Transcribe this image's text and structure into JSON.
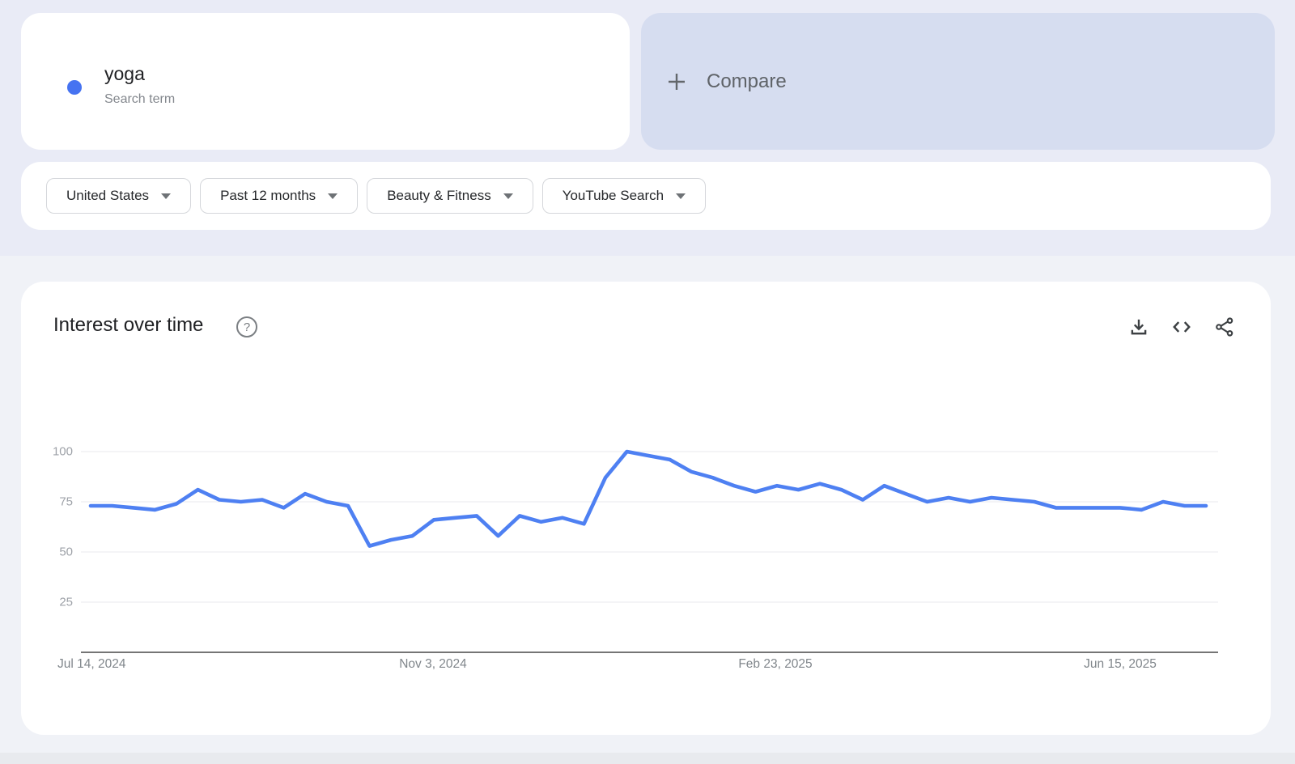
{
  "term_card": {
    "term": "yoga",
    "type_label": "Search term",
    "dot_color": "#4673f1"
  },
  "compare_card": {
    "label": "Compare",
    "plus_icon": "+"
  },
  "filters": [
    {
      "label": "United States"
    },
    {
      "label": "Past 12 months"
    },
    {
      "label": "Beauty & Fitness"
    },
    {
      "label": "YouTube Search"
    }
  ],
  "chart_header": {
    "title": "Interest over time",
    "help_icon": "?",
    "actions": [
      "download",
      "embed",
      "share"
    ]
  },
  "chart_data": {
    "type": "line",
    "title": "Interest over time",
    "xlabel": "",
    "ylabel": "",
    "ylim": [
      0,
      100
    ],
    "grid": "horizontal",
    "legend": "none",
    "ytick_labels": [
      "100",
      "75",
      "50",
      "25"
    ],
    "xtick_labels": [
      "Jul 14, 2024",
      "Nov 3, 2024",
      "Feb 23, 2025",
      "Jun 15, 2025"
    ],
    "x": [
      "2024-07-14",
      "2024-07-21",
      "2024-07-28",
      "2024-08-04",
      "2024-08-11",
      "2024-08-18",
      "2024-08-25",
      "2024-09-01",
      "2024-09-08",
      "2024-09-15",
      "2024-09-22",
      "2024-09-29",
      "2024-10-06",
      "2024-10-13",
      "2024-10-20",
      "2024-10-27",
      "2024-11-03",
      "2024-11-10",
      "2024-11-17",
      "2024-11-24",
      "2024-12-01",
      "2024-12-08",
      "2024-12-15",
      "2024-12-22",
      "2024-12-29",
      "2025-01-05",
      "2025-01-12",
      "2025-01-19",
      "2025-01-26",
      "2025-02-02",
      "2025-02-09",
      "2025-02-16",
      "2025-02-23",
      "2025-03-02",
      "2025-03-09",
      "2025-03-16",
      "2025-03-23",
      "2025-03-30",
      "2025-04-06",
      "2025-04-13",
      "2025-04-20",
      "2025-04-27",
      "2025-05-04",
      "2025-05-11",
      "2025-05-18",
      "2025-05-25",
      "2025-06-01",
      "2025-06-08",
      "2025-06-15",
      "2025-06-22",
      "2025-06-29",
      "2025-07-06",
      "2025-07-13"
    ],
    "series": [
      {
        "name": "yoga",
        "color": "#4e80f2",
        "values": [
          73,
          73,
          72,
          71,
          74,
          81,
          76,
          75,
          76,
          72,
          79,
          75,
          73,
          53,
          56,
          58,
          66,
          67,
          68,
          58,
          68,
          65,
          67,
          64,
          87,
          100,
          98,
          96,
          90,
          87,
          83,
          80,
          83,
          81,
          84,
          81,
          76,
          83,
          79,
          75,
          77,
          75,
          77,
          76,
          75,
          72,
          72,
          72,
          72,
          71,
          75,
          73,
          73
        ]
      }
    ]
  },
  "colors": {
    "hero_background": "#e9ebf6",
    "body_background": "#f0f2f7",
    "card_background": "#ffffff",
    "compare_background": "#d6ddf0",
    "line": "#4e80f2",
    "gridline": "#e8e9ec",
    "axis_baseline": "#757575",
    "ytick_text": "#9ea2a8",
    "xtick_text": "#80868b",
    "title_text": "#202124"
  }
}
